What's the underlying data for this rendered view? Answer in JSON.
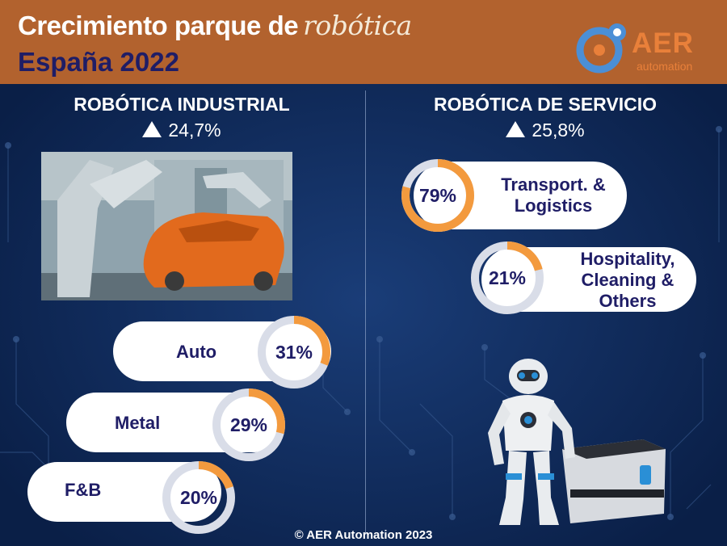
{
  "header": {
    "title_main": "Crecimiento parque de",
    "title_script": "robótica",
    "subtitle": "España 2022"
  },
  "logo": {
    "text": "AER",
    "subtext": "automation"
  },
  "industrial": {
    "title": "ROBÓTICA INDUSTRIAL",
    "growth": "24,7%",
    "photo_alt": "robot-painting-car"
  },
  "service": {
    "title": "ROBÓTICA DE SERVICIO",
    "growth": "25,8%"
  },
  "chart_data": [
    {
      "type": "donut",
      "title": "ROBÓTICA INDUSTRIAL",
      "categories": [
        "Auto",
        "Metal",
        "F&B"
      ],
      "values": [
        31,
        29,
        20
      ],
      "labels": [
        "31%",
        "29%",
        "20%"
      ],
      "unit": "%"
    },
    {
      "type": "donut",
      "title": "ROBÓTICA DE SERVICIO",
      "categories": [
        "Transport. & Logistics",
        "Hospitality, Cleaning & Others"
      ],
      "label_lines": [
        [
          "Transport. &",
          "Logistics"
        ],
        [
          "Hospitality,",
          "Cleaning &",
          "Others"
        ]
      ],
      "values": [
        79,
        21
      ],
      "labels": [
        "79%",
        "21%"
      ],
      "unit": "%"
    }
  ],
  "colors": {
    "background": "#0c2552",
    "header": "#b2622e",
    "accent": "#f39a3e",
    "ring_track": "#d9dde8",
    "text_dark": "#1f1d66"
  },
  "footer": "© AER Automation 2023"
}
